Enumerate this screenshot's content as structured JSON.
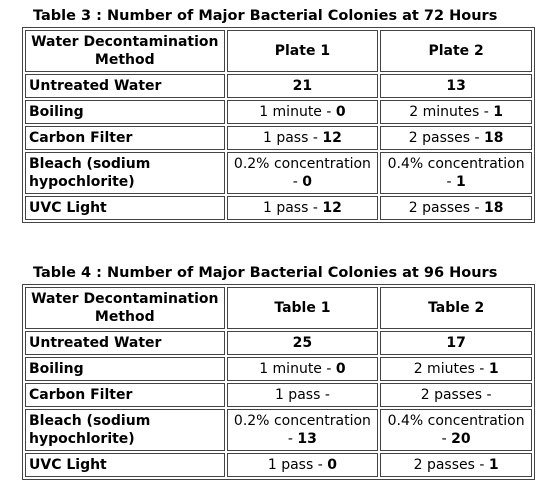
{
  "table3": {
    "caption": "Table 3 : Number of Major Bacterial Colonies at 72 Hours",
    "headers": [
      "Water Decontamination Method",
      "Plate 1",
      "Plate 2"
    ],
    "rows": [
      {
        "label": "Untreated Water",
        "c1_text": "",
        "c1_value": "21",
        "c2_text": "",
        "c2_value": "13"
      },
      {
        "label": "Boiling",
        "c1_text": "1 minute - ",
        "c1_value": "0",
        "c2_text": "2 minutes - ",
        "c2_value": "1"
      },
      {
        "label": "Carbon Filter",
        "c1_text": "1 pass - ",
        "c1_value": "12",
        "c2_text": "2 passes - ",
        "c2_value": "18"
      },
      {
        "label": "Bleach (sodium hypochlorite)",
        "c1_text": "0.2% concentration - ",
        "c1_value": "0",
        "c2_text": "0.4% concentration - ",
        "c2_value": "1"
      },
      {
        "label": "UVC Light",
        "c1_text": "1 pass - ",
        "c1_value": "12",
        "c2_text": "2 passes - ",
        "c2_value": "18"
      }
    ]
  },
  "table4": {
    "caption": "Table 4 : Number of Major Bacterial Colonies at 96 Hours",
    "headers": [
      "Water Decontamination Method",
      "Table 1",
      "Table 2"
    ],
    "rows": [
      {
        "label": "Untreated Water",
        "c1_text": "",
        "c1_value": "25",
        "c2_text": "",
        "c2_value": "17"
      },
      {
        "label": "Boiling",
        "c1_text": "1 minute - ",
        "c1_value": "0",
        "c2_text": "2 miutes - ",
        "c2_value": "1"
      },
      {
        "label": "Carbon Filter",
        "c1_text": "1 pass - ",
        "c1_value": "",
        "c2_text": "2 passes - ",
        "c2_value": ""
      },
      {
        "label": "Bleach (sodium hypochlorite)",
        "c1_text": "0.2% concentration - ",
        "c1_value": "13",
        "c2_text": "0.4% concentration - ",
        "c2_value": "20"
      },
      {
        "label": "UVC Light",
        "c1_text": "1 pass - ",
        "c1_value": "0",
        "c2_text": "2 passes - ",
        "c2_value": "1"
      }
    ]
  }
}
